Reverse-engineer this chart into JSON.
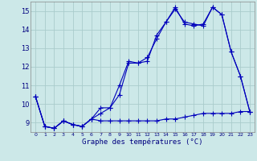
{
  "xlabel": "Graphe des températures (°C)",
  "bg_color": "#cce8e8",
  "grid_color": "#aacccc",
  "line_color": "#0000bb",
  "xlim": [
    -0.5,
    23.5
  ],
  "ylim": [
    8.5,
    15.5
  ],
  "yticks": [
    9,
    10,
    11,
    12,
    13,
    14,
    15
  ],
  "xticks": [
    0,
    1,
    2,
    3,
    4,
    5,
    6,
    7,
    8,
    9,
    10,
    11,
    12,
    13,
    14,
    15,
    16,
    17,
    18,
    19,
    20,
    21,
    22,
    23
  ],
  "series1_x": [
    0,
    1,
    2,
    3,
    4,
    5,
    6,
    7,
    8,
    9,
    10,
    11,
    12,
    13,
    14,
    15,
    16,
    17,
    18,
    19,
    20,
    21,
    22,
    23
  ],
  "series1_y": [
    10.4,
    8.8,
    8.7,
    9.1,
    8.9,
    8.8,
    9.2,
    9.1,
    9.1,
    9.1,
    9.1,
    9.1,
    9.1,
    9.1,
    9.2,
    9.2,
    9.3,
    9.4,
    9.5,
    9.5,
    9.5,
    9.5,
    9.6,
    9.6
  ],
  "series2_x": [
    0,
    1,
    2,
    3,
    4,
    5,
    6,
    7,
    8,
    9,
    10,
    11,
    12,
    13,
    14,
    15,
    16,
    17,
    18,
    19,
    20,
    21,
    22,
    23
  ],
  "series2_y": [
    10.4,
    8.8,
    8.7,
    9.1,
    8.9,
    8.8,
    9.2,
    9.5,
    9.8,
    10.5,
    12.2,
    12.2,
    12.5,
    13.5,
    14.4,
    15.1,
    14.4,
    14.3,
    14.2,
    15.2,
    14.8,
    12.8,
    11.5,
    9.6
  ],
  "series3_x": [
    0,
    1,
    2,
    3,
    4,
    5,
    6,
    7,
    8,
    9,
    10,
    11,
    12,
    13,
    14,
    15,
    16,
    17,
    18,
    19,
    20,
    21,
    22,
    23
  ],
  "series3_y": [
    10.4,
    8.8,
    8.7,
    9.1,
    8.9,
    8.8,
    9.2,
    9.8,
    9.8,
    11.0,
    12.3,
    12.2,
    12.3,
    13.7,
    14.4,
    15.2,
    14.3,
    14.2,
    14.3,
    15.2,
    14.8,
    12.8,
    11.5,
    9.6
  ],
  "figw": 3.2,
  "figh": 2.0,
  "dpi": 100
}
